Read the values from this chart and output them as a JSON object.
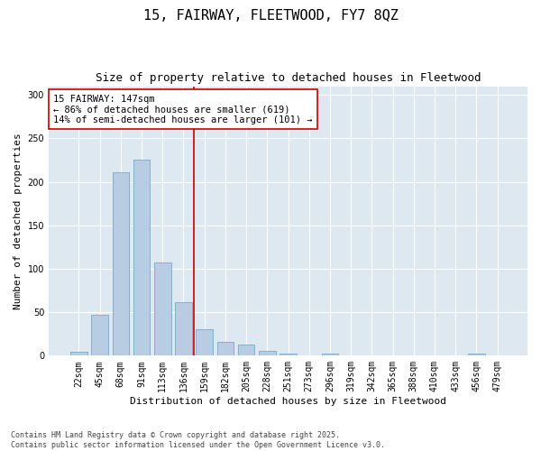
{
  "title_line1": "15, FAIRWAY, FLEETWOOD, FY7 8QZ",
  "title_line2": "Size of property relative to detached houses in Fleetwood",
  "xlabel": "Distribution of detached houses by size in Fleetwood",
  "ylabel": "Number of detached properties",
  "bin_labels": [
    "22sqm",
    "45sqm",
    "68sqm",
    "91sqm",
    "113sqm",
    "136sqm",
    "159sqm",
    "182sqm",
    "205sqm",
    "228sqm",
    "251sqm",
    "273sqm",
    "296sqm",
    "319sqm",
    "342sqm",
    "365sqm",
    "388sqm",
    "410sqm",
    "433sqm",
    "456sqm",
    "479sqm"
  ],
  "bar_heights": [
    4,
    47,
    211,
    226,
    107,
    62,
    30,
    16,
    13,
    6,
    2,
    0,
    2,
    0,
    0,
    0,
    0,
    0,
    0,
    2,
    0
  ],
  "bar_color": "#b8cce4",
  "bar_edge_color": "#7aa8cc",
  "bar_width": 0.8,
  "vline_x": 5.5,
  "vline_color": "#cc0000",
  "annotation_line1": "15 FAIRWAY: 147sqm",
  "annotation_line2": "← 86% of detached houses are smaller (619)",
  "annotation_line3": "14% of semi-detached houses are larger (101) →",
  "annotation_box_color": "#ffffff",
  "annotation_box_edge": "#cc0000",
  "ylim": [
    0,
    310
  ],
  "yticks": [
    0,
    50,
    100,
    150,
    200,
    250,
    300
  ],
  "background_color": "#dde8f0",
  "footer_text": "Contains HM Land Registry data © Crown copyright and database right 2025.\nContains public sector information licensed under the Open Government Licence v3.0.",
  "title_fontsize": 11,
  "subtitle_fontsize": 9,
  "axis_label_fontsize": 8,
  "tick_fontsize": 7,
  "annotation_fontsize": 7.5,
  "footer_fontsize": 6
}
